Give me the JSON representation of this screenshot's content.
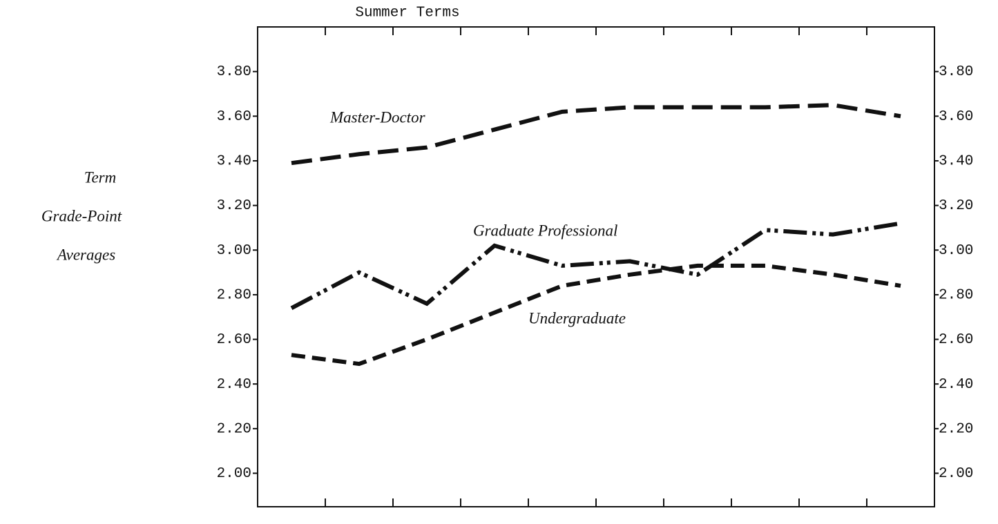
{
  "chart_data": {
    "type": "line",
    "title": "Summer Terms",
    "ylabel": [
      "Term",
      "Grade-Point",
      "Averages"
    ],
    "categories": [
      null,
      null,
      null,
      null,
      null,
      null,
      null,
      null,
      null,
      null
    ],
    "series": [
      {
        "name": "Master-Doctor",
        "color": "#111111",
        "dash": "long-dash",
        "values": [
          3.39,
          3.43,
          3.46,
          3.54,
          3.62,
          3.64,
          3.64,
          3.64,
          3.65,
          3.6
        ]
      },
      {
        "name": "Graduate Professional",
        "color": "#111111",
        "dash": "dash-dot-dot",
        "values": [
          2.74,
          2.9,
          2.76,
          3.02,
          2.93,
          2.95,
          2.89,
          3.09,
          3.07,
          3.12
        ]
      },
      {
        "name": "Undergraduate",
        "color": "#111111",
        "dash": "dash",
        "values": [
          2.53,
          2.49,
          2.6,
          2.72,
          2.84,
          2.89,
          2.93,
          2.93,
          2.89,
          2.84
        ]
      }
    ],
    "ylim": [
      1.85,
      4.0
    ],
    "yticks": [
      {
        "value": 2.0,
        "label": "2.00"
      },
      {
        "value": 2.2,
        "label": "2.20"
      },
      {
        "value": 2.4,
        "label": "2.40"
      },
      {
        "value": 2.6,
        "label": "2.60"
      },
      {
        "value": 2.8,
        "label": "2.80"
      },
      {
        "value": 3.0,
        "label": "3.00"
      },
      {
        "value": 3.2,
        "label": "3.20"
      },
      {
        "value": 3.4,
        "label": "3.40"
      },
      {
        "value": 3.6,
        "label": "3.60"
      },
      {
        "value": 3.8,
        "label": "3.80"
      }
    ],
    "grid": false
  }
}
